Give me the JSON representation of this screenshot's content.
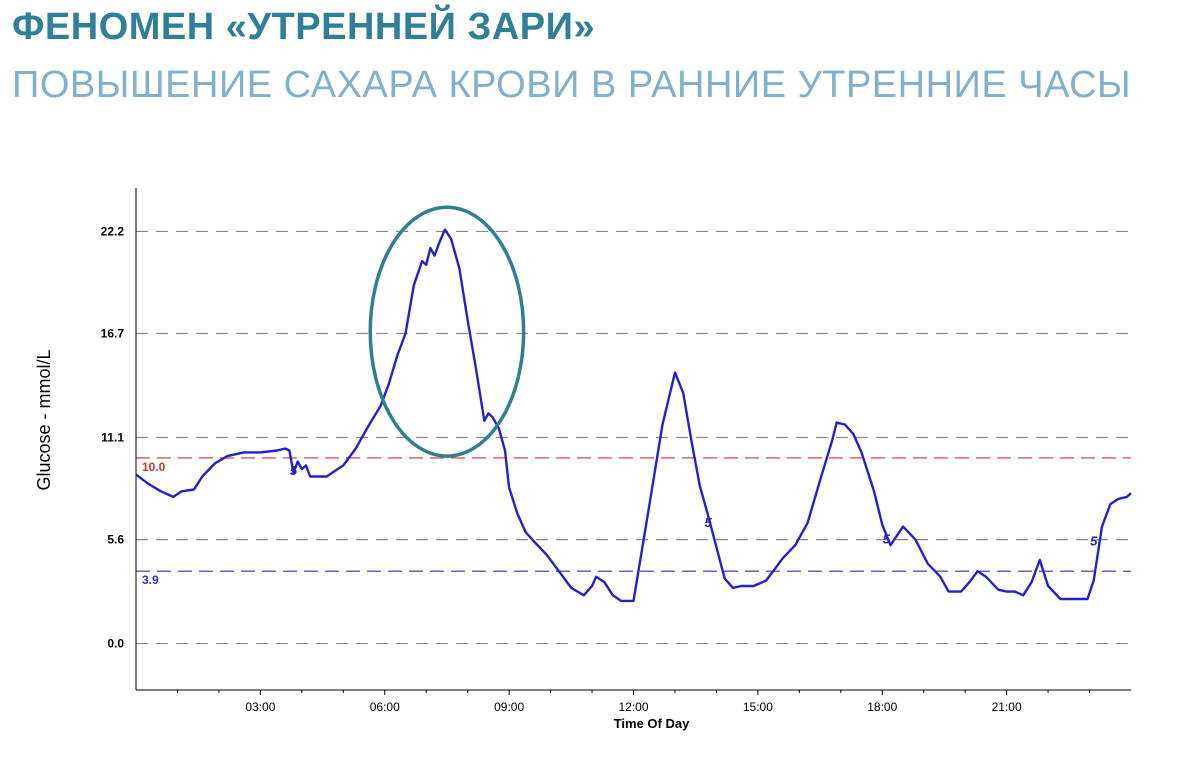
{
  "slide": {
    "title": "ФЕНОМЕН «УТРЕННЕЙ ЗАРИ»",
    "subtitle": "ПОВЫШЕНИЕ САХАРА КРОВИ В РАННИЕ УТРЕННИЕ ЧАСЫ"
  },
  "colors": {
    "title": "#2f7f99",
    "subtitle": "#7fb0cc",
    "glucose_line": "#2222cc",
    "upper_target": "#cc3333",
    "lower_target": "#3333aa",
    "gridline": "#888888",
    "highlight_ellipse": "#2e7f8f"
  },
  "chart_data": {
    "type": "line",
    "xlabel": "Time Of Day",
    "ylabel": "Glucose - mmol/L",
    "xlim": [
      0,
      24
    ],
    "ylim": [
      -2.5,
      24
    ],
    "yticks": [
      0.0,
      5.6,
      11.1,
      16.7,
      22.2
    ],
    "ytick_labels": [
      "0.0",
      "5.6",
      "11.1",
      "16.7",
      "22.2"
    ],
    "xticks": [
      3,
      6,
      9,
      12,
      15,
      18,
      21
    ],
    "xtick_labels": [
      "03:00",
      "06:00",
      "09:00",
      "12:00",
      "15:00",
      "18:00",
      "21:00"
    ],
    "grid": "horizontal dashed",
    "reference_lines": [
      {
        "value": 10.0,
        "label": "10.0",
        "color": "#cc3333"
      },
      {
        "value": 3.9,
        "label": "3.9",
        "color": "#3333aa"
      }
    ],
    "highlight": {
      "shape": "ellipse",
      "x_center": 7.5,
      "y_center": 16.8,
      "x_radius": 1.85,
      "y_radius": 6.7
    },
    "markers": [
      {
        "x": 3.8,
        "y": 9.3,
        "text": "5"
      },
      {
        "x": 13.8,
        "y": 6.5,
        "text": "5"
      },
      {
        "x": 18.1,
        "y": 5.6,
        "text": "5"
      },
      {
        "x": 23.1,
        "y": 5.5,
        "text": "5"
      }
    ],
    "series": [
      {
        "x": [
          0.0,
          0.3,
          0.6,
          0.9,
          1.1,
          1.4,
          1.6,
          1.9,
          2.2,
          2.6,
          3.0,
          3.4,
          3.6,
          3.7,
          3.8,
          3.9,
          4.0,
          4.1,
          4.2,
          4.4,
          4.6,
          4.8,
          5.0,
          5.3,
          5.6,
          5.9,
          6.1,
          6.3,
          6.5,
          6.7,
          6.9,
          7.0,
          7.1,
          7.2,
          7.3,
          7.45,
          7.6,
          7.8,
          8.0,
          8.2,
          8.4,
          8.5,
          8.6,
          8.75,
          8.9,
          9.0,
          9.2,
          9.4,
          9.6,
          9.9,
          10.2,
          10.5,
          10.8,
          11.0,
          11.1,
          11.3,
          11.5,
          11.7,
          12.0,
          12.2,
          12.4,
          12.7,
          13.0,
          13.2,
          13.4,
          13.6,
          13.8,
          14.0,
          14.2,
          14.4,
          14.6,
          14.9,
          15.2,
          15.6,
          15.9,
          16.2,
          16.5,
          16.8,
          16.9,
          17.1,
          17.3,
          17.5,
          17.8,
          18.0,
          18.2,
          18.5,
          18.8,
          19.1,
          19.4,
          19.6,
          19.9,
          20.1,
          20.3,
          20.5,
          20.8,
          21.0,
          21.2,
          21.4,
          21.6,
          21.8,
          22.0,
          22.3,
          22.6,
          22.8,
          22.95,
          23.1,
          23.3,
          23.5,
          23.7,
          23.9,
          24.0
        ],
        "y": [
          9.1,
          8.6,
          8.2,
          7.9,
          8.2,
          8.3,
          9.0,
          9.7,
          10.1,
          10.3,
          10.3,
          10.4,
          10.5,
          10.4,
          9.2,
          9.8,
          9.4,
          9.6,
          9.0,
          9.0,
          9.0,
          9.3,
          9.6,
          10.5,
          11.7,
          12.8,
          14.0,
          15.5,
          16.7,
          19.3,
          20.6,
          20.4,
          21.3,
          20.9,
          21.5,
          22.3,
          21.8,
          20.2,
          17.4,
          14.8,
          12.0,
          12.4,
          12.2,
          11.6,
          10.4,
          8.4,
          7.0,
          6.0,
          5.5,
          4.8,
          3.9,
          3.0,
          2.6,
          3.1,
          3.6,
          3.3,
          2.6,
          2.3,
          2.3,
          5.0,
          7.7,
          11.8,
          14.6,
          13.5,
          10.9,
          8.5,
          6.9,
          5.2,
          3.5,
          3.0,
          3.1,
          3.1,
          3.4,
          4.6,
          5.3,
          6.5,
          8.8,
          11.0,
          11.9,
          11.8,
          11.3,
          10.3,
          8.2,
          6.4,
          5.3,
          6.3,
          5.6,
          4.3,
          3.6,
          2.8,
          2.8,
          3.3,
          3.9,
          3.6,
          2.9,
          2.8,
          2.8,
          2.6,
          3.3,
          4.5,
          3.1,
          2.4,
          2.4,
          2.4,
          2.4,
          3.4,
          6.3,
          7.5,
          7.8,
          7.9,
          8.1
        ]
      }
    ]
  }
}
